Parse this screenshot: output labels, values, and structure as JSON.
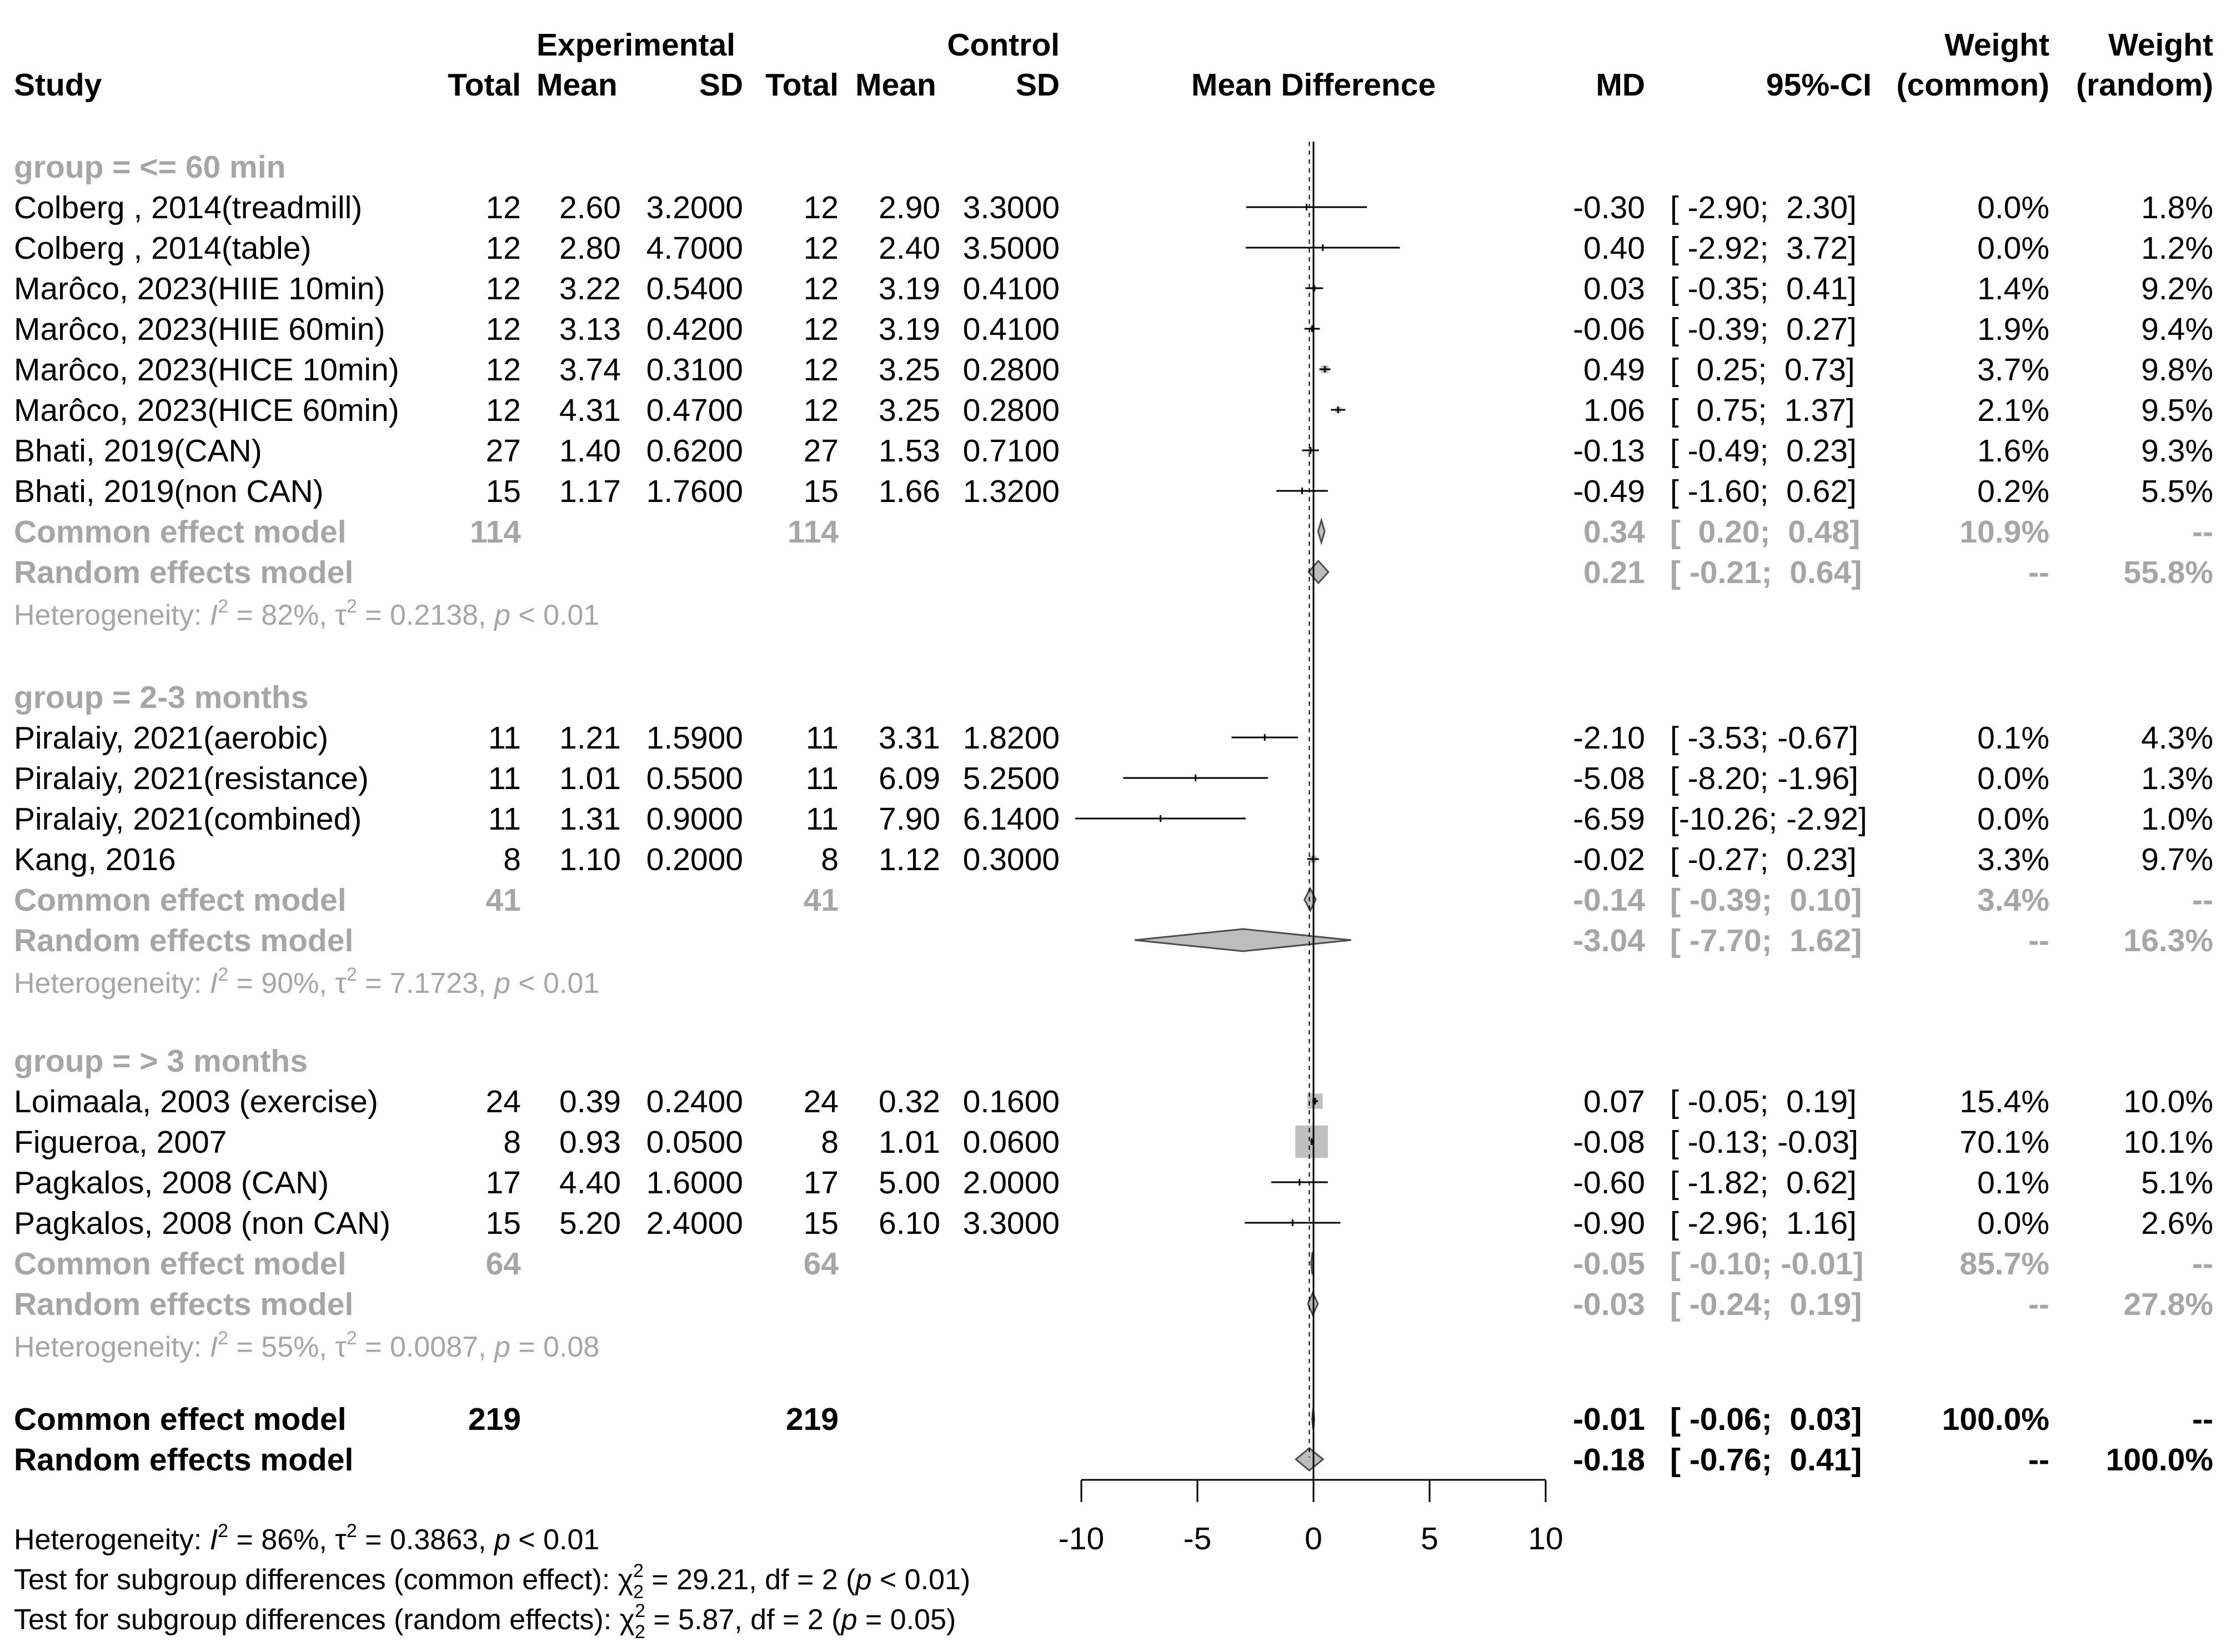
{
  "chart_data": {
    "type": "forest",
    "columns": {
      "study": "Study",
      "experimental_group": "Experimental",
      "control_group": "Control",
      "total": "Total",
      "mean": "Mean",
      "sd": "SD",
      "plot_label": "Mean Difference",
      "md": "MD",
      "ci": "95%-CI",
      "weight_common_1": "Weight",
      "weight_common_2": "(common)",
      "weight_random_1": "Weight",
      "weight_random_2": "(random)"
    },
    "axis": {
      "ticks": [
        -10,
        -5,
        0,
        5,
        10
      ],
      "xlim": [
        -10,
        10
      ],
      "null_line": 0
    },
    "groups": [
      {
        "label": "group = <= 60 min",
        "studies": [
          {
            "name": "Colberg , 2014(treadmill)",
            "e_total": "12",
            "e_mean": "2.60",
            "e_sd": "3.2000",
            "c_total": "12",
            "c_mean": "2.90",
            "c_sd": "3.3000",
            "md": -0.3,
            "lower": -2.9,
            "upper": 2.3,
            "md_text": "-0.30",
            "ci_text": "[ -2.90;  2.30]",
            "w_common": "0.0%",
            "w_random": "1.8%",
            "w": 0.0
          },
          {
            "name": "Colberg , 2014(table)",
            "e_total": "12",
            "e_mean": "2.80",
            "e_sd": "4.7000",
            "c_total": "12",
            "c_mean": "2.40",
            "c_sd": "3.5000",
            "md": 0.4,
            "lower": -2.92,
            "upper": 3.72,
            "md_text": "0.40",
            "ci_text": "[ -2.92;  3.72]",
            "w_common": "0.0%",
            "w_random": "1.2%",
            "w": 0.0
          },
          {
            "name": "Marôco, 2023(HIIE 10min)",
            "e_total": "12",
            "e_mean": "3.22",
            "e_sd": "0.5400",
            "c_total": "12",
            "c_mean": "3.19",
            "c_sd": "0.4100",
            "md": 0.03,
            "lower": -0.35,
            "upper": 0.41,
            "md_text": "0.03",
            "ci_text": "[ -0.35;  0.41]",
            "w_common": "1.4%",
            "w_random": "9.2%",
            "w": 1.4
          },
          {
            "name": "Marôco, 2023(HIIE 60min)",
            "e_total": "12",
            "e_mean": "3.13",
            "e_sd": "0.4200",
            "c_total": "12",
            "c_mean": "3.19",
            "c_sd": "0.4100",
            "md": -0.06,
            "lower": -0.39,
            "upper": 0.27,
            "md_text": "-0.06",
            "ci_text": "[ -0.39;  0.27]",
            "w_common": "1.9%",
            "w_random": "9.4%",
            "w": 1.9
          },
          {
            "name": "Marôco, 2023(HICE 10min)",
            "e_total": "12",
            "e_mean": "3.74",
            "e_sd": "0.3100",
            "c_total": "12",
            "c_mean": "3.25",
            "c_sd": "0.2800",
            "md": 0.49,
            "lower": 0.25,
            "upper": 0.73,
            "md_text": "0.49",
            "ci_text": "[  0.25;  0.73]",
            "w_common": "3.7%",
            "w_random": "9.8%",
            "w": 3.7
          },
          {
            "name": "Marôco, 2023(HICE 60min)",
            "e_total": "12",
            "e_mean": "4.31",
            "e_sd": "0.4700",
            "c_total": "12",
            "c_mean": "3.25",
            "c_sd": "0.2800",
            "md": 1.06,
            "lower": 0.75,
            "upper": 1.37,
            "md_text": "1.06",
            "ci_text": "[  0.75;  1.37]",
            "w_common": "2.1%",
            "w_random": "9.5%",
            "w": 2.1
          },
          {
            "name": "Bhati, 2019(CAN)",
            "e_total": "27",
            "e_mean": "1.40",
            "e_sd": "0.6200",
            "c_total": "27",
            "c_mean": "1.53",
            "c_sd": "0.7100",
            "md": -0.13,
            "lower": -0.49,
            "upper": 0.23,
            "md_text": "-0.13",
            "ci_text": "[ -0.49;  0.23]",
            "w_common": "1.6%",
            "w_random": "9.3%",
            "w": 1.6
          },
          {
            "name": "Bhati, 2019(non CAN)",
            "e_total": "15",
            "e_mean": "1.17",
            "e_sd": "1.7600",
            "c_total": "15",
            "c_mean": "1.66",
            "c_sd": "1.3200",
            "md": -0.49,
            "lower": -1.6,
            "upper": 0.62,
            "md_text": "-0.49",
            "ci_text": "[ -1.60;  0.62]",
            "w_common": "0.2%",
            "w_random": "5.5%",
            "w": 0.2
          }
        ],
        "common": {
          "label": "Common effect model",
          "e_total": "114",
          "c_total": "114",
          "md": 0.34,
          "lower": 0.2,
          "upper": 0.48,
          "md_text": "0.34",
          "ci_text": "[  0.20;  0.48]",
          "w_common": "10.9%",
          "w_random": "--"
        },
        "random": {
          "label": "Random effects model",
          "md": 0.21,
          "lower": -0.21,
          "upper": 0.64,
          "md_text": "0.21",
          "ci_text": "[ -0.21;  0.64]",
          "w_common": "--",
          "w_random": "55.8%"
        },
        "heterogeneity": {
          "prefix": "Heterogeneity: ",
          "i2": "= 82%, ",
          "tau2": "= 0.2138, ",
          "p": " < 0.01"
        }
      },
      {
        "label": "group = 2-3 months",
        "studies": [
          {
            "name": "Piralaiy, 2021(aerobic)",
            "e_total": "11",
            "e_mean": "1.21",
            "e_sd": "1.5900",
            "c_total": "11",
            "c_mean": "3.31",
            "c_sd": "1.8200",
            "md": -2.1,
            "lower": -3.53,
            "upper": -0.67,
            "md_text": "-2.10",
            "ci_text": "[ -3.53; -0.67]",
            "w_common": "0.1%",
            "w_random": "4.3%",
            "w": 0.1
          },
          {
            "name": "Piralaiy, 2021(resistance)",
            "e_total": "11",
            "e_mean": "1.01",
            "e_sd": "0.5500",
            "c_total": "11",
            "c_mean": "6.09",
            "c_sd": "5.2500",
            "md": -5.08,
            "lower": -8.2,
            "upper": -1.96,
            "md_text": "-5.08",
            "ci_text": "[ -8.20; -1.96]",
            "w_common": "0.0%",
            "w_random": "1.3%",
            "w": 0.0
          },
          {
            "name": "Piralaiy, 2021(combined)",
            "e_total": "11",
            "e_mean": "1.31",
            "e_sd": "0.9000",
            "c_total": "11",
            "c_mean": "7.90",
            "c_sd": "6.1400",
            "md": -6.59,
            "lower": -10.26,
            "upper": -2.92,
            "md_text": "-6.59",
            "ci_text": "[-10.26; -2.92]",
            "w_common": "0.0%",
            "w_random": "1.0%",
            "w": 0.0
          },
          {
            "name": "Kang, 2016",
            "e_total": "8",
            "e_mean": "1.10",
            "e_sd": "0.2000",
            "c_total": "8",
            "c_mean": "1.12",
            "c_sd": "0.3000",
            "md": -0.02,
            "lower": -0.27,
            "upper": 0.23,
            "md_text": "-0.02",
            "ci_text": "[ -0.27;  0.23]",
            "w_common": "3.3%",
            "w_random": "9.7%",
            "w": 3.3
          }
        ],
        "common": {
          "label": "Common effect model",
          "e_total": "41",
          "c_total": "41",
          "md": -0.14,
          "lower": -0.39,
          "upper": 0.1,
          "md_text": "-0.14",
          "ci_text": "[ -0.39;  0.10]",
          "w_common": "3.4%",
          "w_random": "--"
        },
        "random": {
          "label": "Random effects model",
          "md": -3.04,
          "lower": -7.7,
          "upper": 1.62,
          "md_text": "-3.04",
          "ci_text": "[ -7.70;  1.62]",
          "w_common": "--",
          "w_random": "16.3%"
        },
        "heterogeneity": {
          "prefix": "Heterogeneity: ",
          "i2": "= 90%, ",
          "tau2": "= 7.1723, ",
          "p": " < 0.01"
        }
      },
      {
        "label": "group = > 3 months",
        "studies": [
          {
            "name": "Loimaala, 2003 (exercise)",
            "e_total": "24",
            "e_mean": "0.39",
            "e_sd": "0.2400",
            "c_total": "24",
            "c_mean": "0.32",
            "c_sd": "0.1600",
            "md": 0.07,
            "lower": -0.05,
            "upper": 0.19,
            "md_text": "0.07",
            "ci_text": "[ -0.05;  0.19]",
            "w_common": "15.4%",
            "w_random": "10.0%",
            "w": 15.4
          },
          {
            "name": "Figueroa, 2007",
            "e_total": "8",
            "e_mean": "0.93",
            "e_sd": "0.0500",
            "c_total": "8",
            "c_mean": "1.01",
            "c_sd": "0.0600",
            "md": -0.08,
            "lower": -0.13,
            "upper": -0.03,
            "md_text": "-0.08",
            "ci_text": "[ -0.13; -0.03]",
            "w_common": "70.1%",
            "w_random": "10.1%",
            "w": 70.1
          },
          {
            "name": "Pagkalos, 2008 (CAN)",
            "e_total": "17",
            "e_mean": "4.40",
            "e_sd": "1.6000",
            "c_total": "17",
            "c_mean": "5.00",
            "c_sd": "2.0000",
            "md": -0.6,
            "lower": -1.82,
            "upper": 0.62,
            "md_text": "-0.60",
            "ci_text": "[ -1.82;  0.62]",
            "w_common": "0.1%",
            "w_random": "5.1%",
            "w": 0.1
          },
          {
            "name": "Pagkalos, 2008 (non CAN)",
            "e_total": "15",
            "e_mean": "5.20",
            "e_sd": "2.4000",
            "c_total": "15",
            "c_mean": "6.10",
            "c_sd": "3.3000",
            "md": -0.9,
            "lower": -2.96,
            "upper": 1.16,
            "md_text": "-0.90",
            "ci_text": "[ -2.96;  1.16]",
            "w_common": "0.0%",
            "w_random": "2.6%",
            "w": 0.0
          }
        ],
        "common": {
          "label": "Common effect model",
          "e_total": "64",
          "c_total": "64",
          "md": -0.05,
          "lower": -0.1,
          "upper": -0.01,
          "md_text": "-0.05",
          "ci_text": "[ -0.10; -0.01]",
          "w_common": "85.7%",
          "w_random": "--"
        },
        "random": {
          "label": "Random effects model",
          "md": -0.03,
          "lower": -0.24,
          "upper": 0.19,
          "md_text": "-0.03",
          "ci_text": "[ -0.24;  0.19]",
          "w_common": "--",
          "w_random": "27.8%"
        },
        "heterogeneity": {
          "prefix": "Heterogeneity: ",
          "i2": "= 55%, ",
          "tau2": "= 0.0087, ",
          "p": " = 0.08"
        }
      }
    ],
    "overall": {
      "common": {
        "label": "Common effect model",
        "e_total": "219",
        "c_total": "219",
        "md": -0.01,
        "lower": -0.06,
        "upper": 0.03,
        "md_text": "-0.01",
        "ci_text": "[ -0.06;  0.03]",
        "w_common": "100.0%",
        "w_random": "--"
      },
      "random": {
        "label": "Random effects model",
        "md": -0.18,
        "lower": -0.76,
        "upper": 0.41,
        "md_text": "-0.18",
        "ci_text": "[ -0.76;  0.41]",
        "w_common": "--",
        "w_random": "100.0%"
      }
    },
    "footer": {
      "heterogeneity": {
        "prefix": "Heterogeneity: ",
        "i2": "= 86%, ",
        "tau2": "= 0.3863, ",
        "p": " < 0.01"
      },
      "test_common": {
        "prefix": "Test for subgroup differences (common effect): ",
        "stat": "= 29.21, df = 2 (",
        "p": " < 0.01)"
      },
      "test_random": {
        "prefix": "Test for subgroup differences (random effects): ",
        "stat": "= 5.87, df = 2 (",
        "p": " = 0.05)"
      }
    },
    "colors": {
      "text": "#000000",
      "grey_text": "#a6a6a6",
      "diamond_fill": "#bdbdbd",
      "diamond_stroke": "#4d4d4d",
      "square": "#bfbfbf",
      "line": "#000000"
    }
  }
}
